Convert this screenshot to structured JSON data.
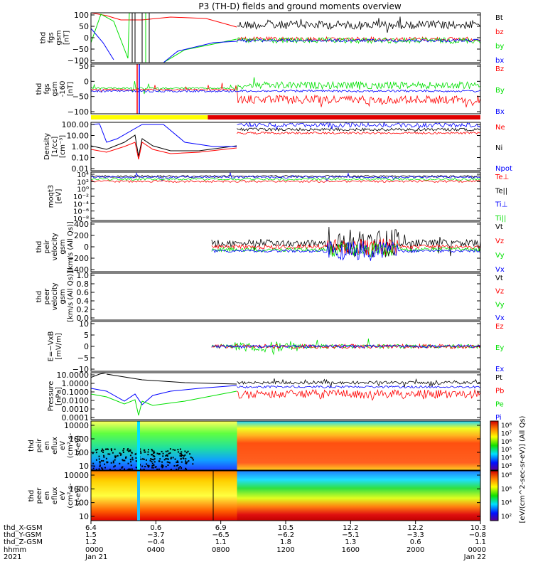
{
  "title": "P3 (TH-D) fields and ground moments overview",
  "colors": {
    "black": "#000000",
    "red": "#ff0000",
    "green": "#00e000",
    "blue": "#0000ff",
    "yellow": "#ffff00",
    "barRed": "#e00000"
  },
  "chart_data": [
    {
      "id": "fgs",
      "type": "line",
      "ylabel": [
        "thd",
        "fgs",
        "gsm",
        "[nT]"
      ],
      "yticks": [
        "100",
        "50",
        "0",
        "−50",
        "−100"
      ],
      "ylim": [
        -100,
        100
      ],
      "legend": [
        {
          "label": "Bt",
          "color": "#000000"
        },
        {
          "label": "bz",
          "color": "#ff0000"
        },
        {
          "label": "by",
          "color": "#00e000"
        },
        {
          "label": "bx",
          "color": "#0000ff"
        }
      ]
    },
    {
      "id": "fgs_zoom",
      "type": "line",
      "ylabel": [
        "thd",
        "fgs",
        "gsm",
        "-160",
        "[nT]"
      ],
      "yticks": [
        "50",
        "0",
        "−50",
        "−100"
      ],
      "ylim": [
        -120,
        80
      ],
      "legend": [
        {
          "label": "Bz",
          "color": "#ff0000"
        },
        {
          "label": "By",
          "color": "#00e000"
        },
        {
          "label": "Bx",
          "color": "#0000ff"
        }
      ]
    },
    {
      "id": "density",
      "type": "line",
      "ylabel": [
        "Density",
        "[1/cc]",
        "[cm⁻³]"
      ],
      "yticks": [
        "100.00",
        "10.00",
        "1.00",
        "0.10",
        "0.01"
      ],
      "legend": [
        {
          "label": "Ne",
          "color": "#ff0000"
        },
        {
          "label": "Ni",
          "color": "#000000"
        },
        {
          "label": "Npot",
          "color": "#0000ff"
        }
      ]
    },
    {
      "id": "temperature",
      "type": "line",
      "ylabel": [
        "moqt3",
        "[eV]"
      ],
      "yticks": [
        "10⁴",
        "10²",
        "10⁰",
        "10⁻²",
        "10⁻⁴",
        "10⁻⁶",
        "10⁻⁸"
      ],
      "legend": [
        {
          "label": "Te⊥",
          "color": "#ff0000"
        },
        {
          "label": "Te||",
          "color": "#000000"
        },
        {
          "label": "Ti⊥",
          "color": "#0000ff"
        },
        {
          "label": "Ti||",
          "color": "#00e000"
        }
      ]
    },
    {
      "id": "peir_vel",
      "type": "line",
      "ylabel": [
        "thd",
        "peir",
        "velocity",
        "gsm",
        "[km/s (All Qs)]"
      ],
      "yticks": [
        "400",
        "200",
        "0",
        "−200",
        "−400"
      ],
      "ylim": [
        -400,
        400
      ],
      "legend": [
        {
          "label": "Vt",
          "color": "#000000"
        },
        {
          "label": "Vz",
          "color": "#ff0000"
        },
        {
          "label": "Vy",
          "color": "#00e000"
        },
        {
          "label": "Vx",
          "color": "#0000ff"
        }
      ]
    },
    {
      "id": "peer_vel",
      "type": "line",
      "ylabel": [
        "thd",
        "peer",
        "velocity",
        "gsm",
        "[km/s (All Qs)]"
      ],
      "yticks": [
        "1.0",
        "0.8",
        "0.6",
        "0.4",
        "0.2",
        "0.0"
      ],
      "ylim": [
        0,
        1
      ],
      "legend": [
        {
          "label": "Vt",
          "color": "#000000"
        },
        {
          "label": "Vz",
          "color": "#ff0000"
        },
        {
          "label": "Vy",
          "color": "#00e000"
        },
        {
          "label": "Vx",
          "color": "#0000ff"
        }
      ]
    },
    {
      "id": "efield",
      "type": "line",
      "ylabel": [
        "E=−VxB",
        "[mV/m]"
      ],
      "yticks": [
        "10",
        "5",
        "0",
        "−5",
        "−10"
      ],
      "ylim": [
        -10,
        10
      ],
      "legend": [
        {
          "label": "Ez",
          "color": "#ff0000"
        },
        {
          "label": "Ey",
          "color": "#00e000"
        },
        {
          "label": "Ex",
          "color": "#0000ff"
        }
      ]
    },
    {
      "id": "pressure",
      "type": "line",
      "ylabel": [
        "Pressure",
        "[nPa]"
      ],
      "yticks": [
        "10.0000",
        "1.0000",
        "0.1000",
        "0.0100",
        "0.0010",
        "0.0001"
      ],
      "legend": [
        {
          "label": "Pt",
          "color": "#000000"
        },
        {
          "label": "Pb",
          "color": "#ff0000"
        },
        {
          "label": "Pe",
          "color": "#00e000"
        },
        {
          "label": "Pi",
          "color": "#0000ff"
        }
      ]
    },
    {
      "id": "peir_spec",
      "type": "heatmap",
      "ylabel": [
        "thd",
        "peir",
        "en",
        "eflux",
        "eV",
        "(cm²-s-",
        "sr-eV)"
      ],
      "yticks": [
        "10000",
        "1000",
        "100",
        "10"
      ]
    },
    {
      "id": "peer_spec",
      "type": "heatmap",
      "ylabel": [
        "thd",
        "peer",
        "en",
        "eflux",
        "eV",
        "(cm²-s-",
        "sr-eV)"
      ],
      "yticks": [
        "10000",
        "1000",
        "100",
        "10"
      ]
    }
  ],
  "status_bar": {
    "segments": [
      {
        "from": 0,
        "to": 0.3,
        "color": "#ffff00"
      },
      {
        "from": 0.3,
        "to": 1.0,
        "color": "#e00000"
      }
    ]
  },
  "colorbar": {
    "label": "[eV/(cm^2-sec-sr-eV)] (All Qs)",
    "upper_ticks": [
      "10⁸",
      "10⁷",
      "10⁶",
      "10⁵",
      "10⁴",
      "10³"
    ],
    "lower_ticks": [
      "10⁸",
      "10⁶",
      "10⁴",
      "10²"
    ]
  },
  "x_axis": {
    "row_labels": [
      "thd_X-GSM",
      "thd_Y-GSM",
      "thd_Z-GSM",
      "hhmm",
      "2021"
    ],
    "columns": [
      {
        "x": "6.4",
        "y": "1.5",
        "z": "1.2",
        "hhmm": "0000",
        "date": "Jan 21"
      },
      {
        "x": "0.6",
        "y": "−3.7",
        "z": "−0.4",
        "hhmm": "0400",
        "date": ""
      },
      {
        "x": "6.9",
        "y": "−6.5",
        "z": "1.1",
        "hhmm": "0800",
        "date": ""
      },
      {
        "x": "10.5",
        "y": "−6.2",
        "z": "1.8",
        "hhmm": "1200",
        "date": ""
      },
      {
        "x": "12.2",
        "y": "−5.1",
        "z": "1.3",
        "hhmm": "1600",
        "date": ""
      },
      {
        "x": "12.2",
        "y": "−3.3",
        "z": "0.6",
        "hhmm": "2000",
        "date": ""
      },
      {
        "x": "10.3",
        "y": "−0.8",
        "z": "1.1",
        "hhmm": "0000",
        "date": "Jan 22"
      }
    ]
  }
}
